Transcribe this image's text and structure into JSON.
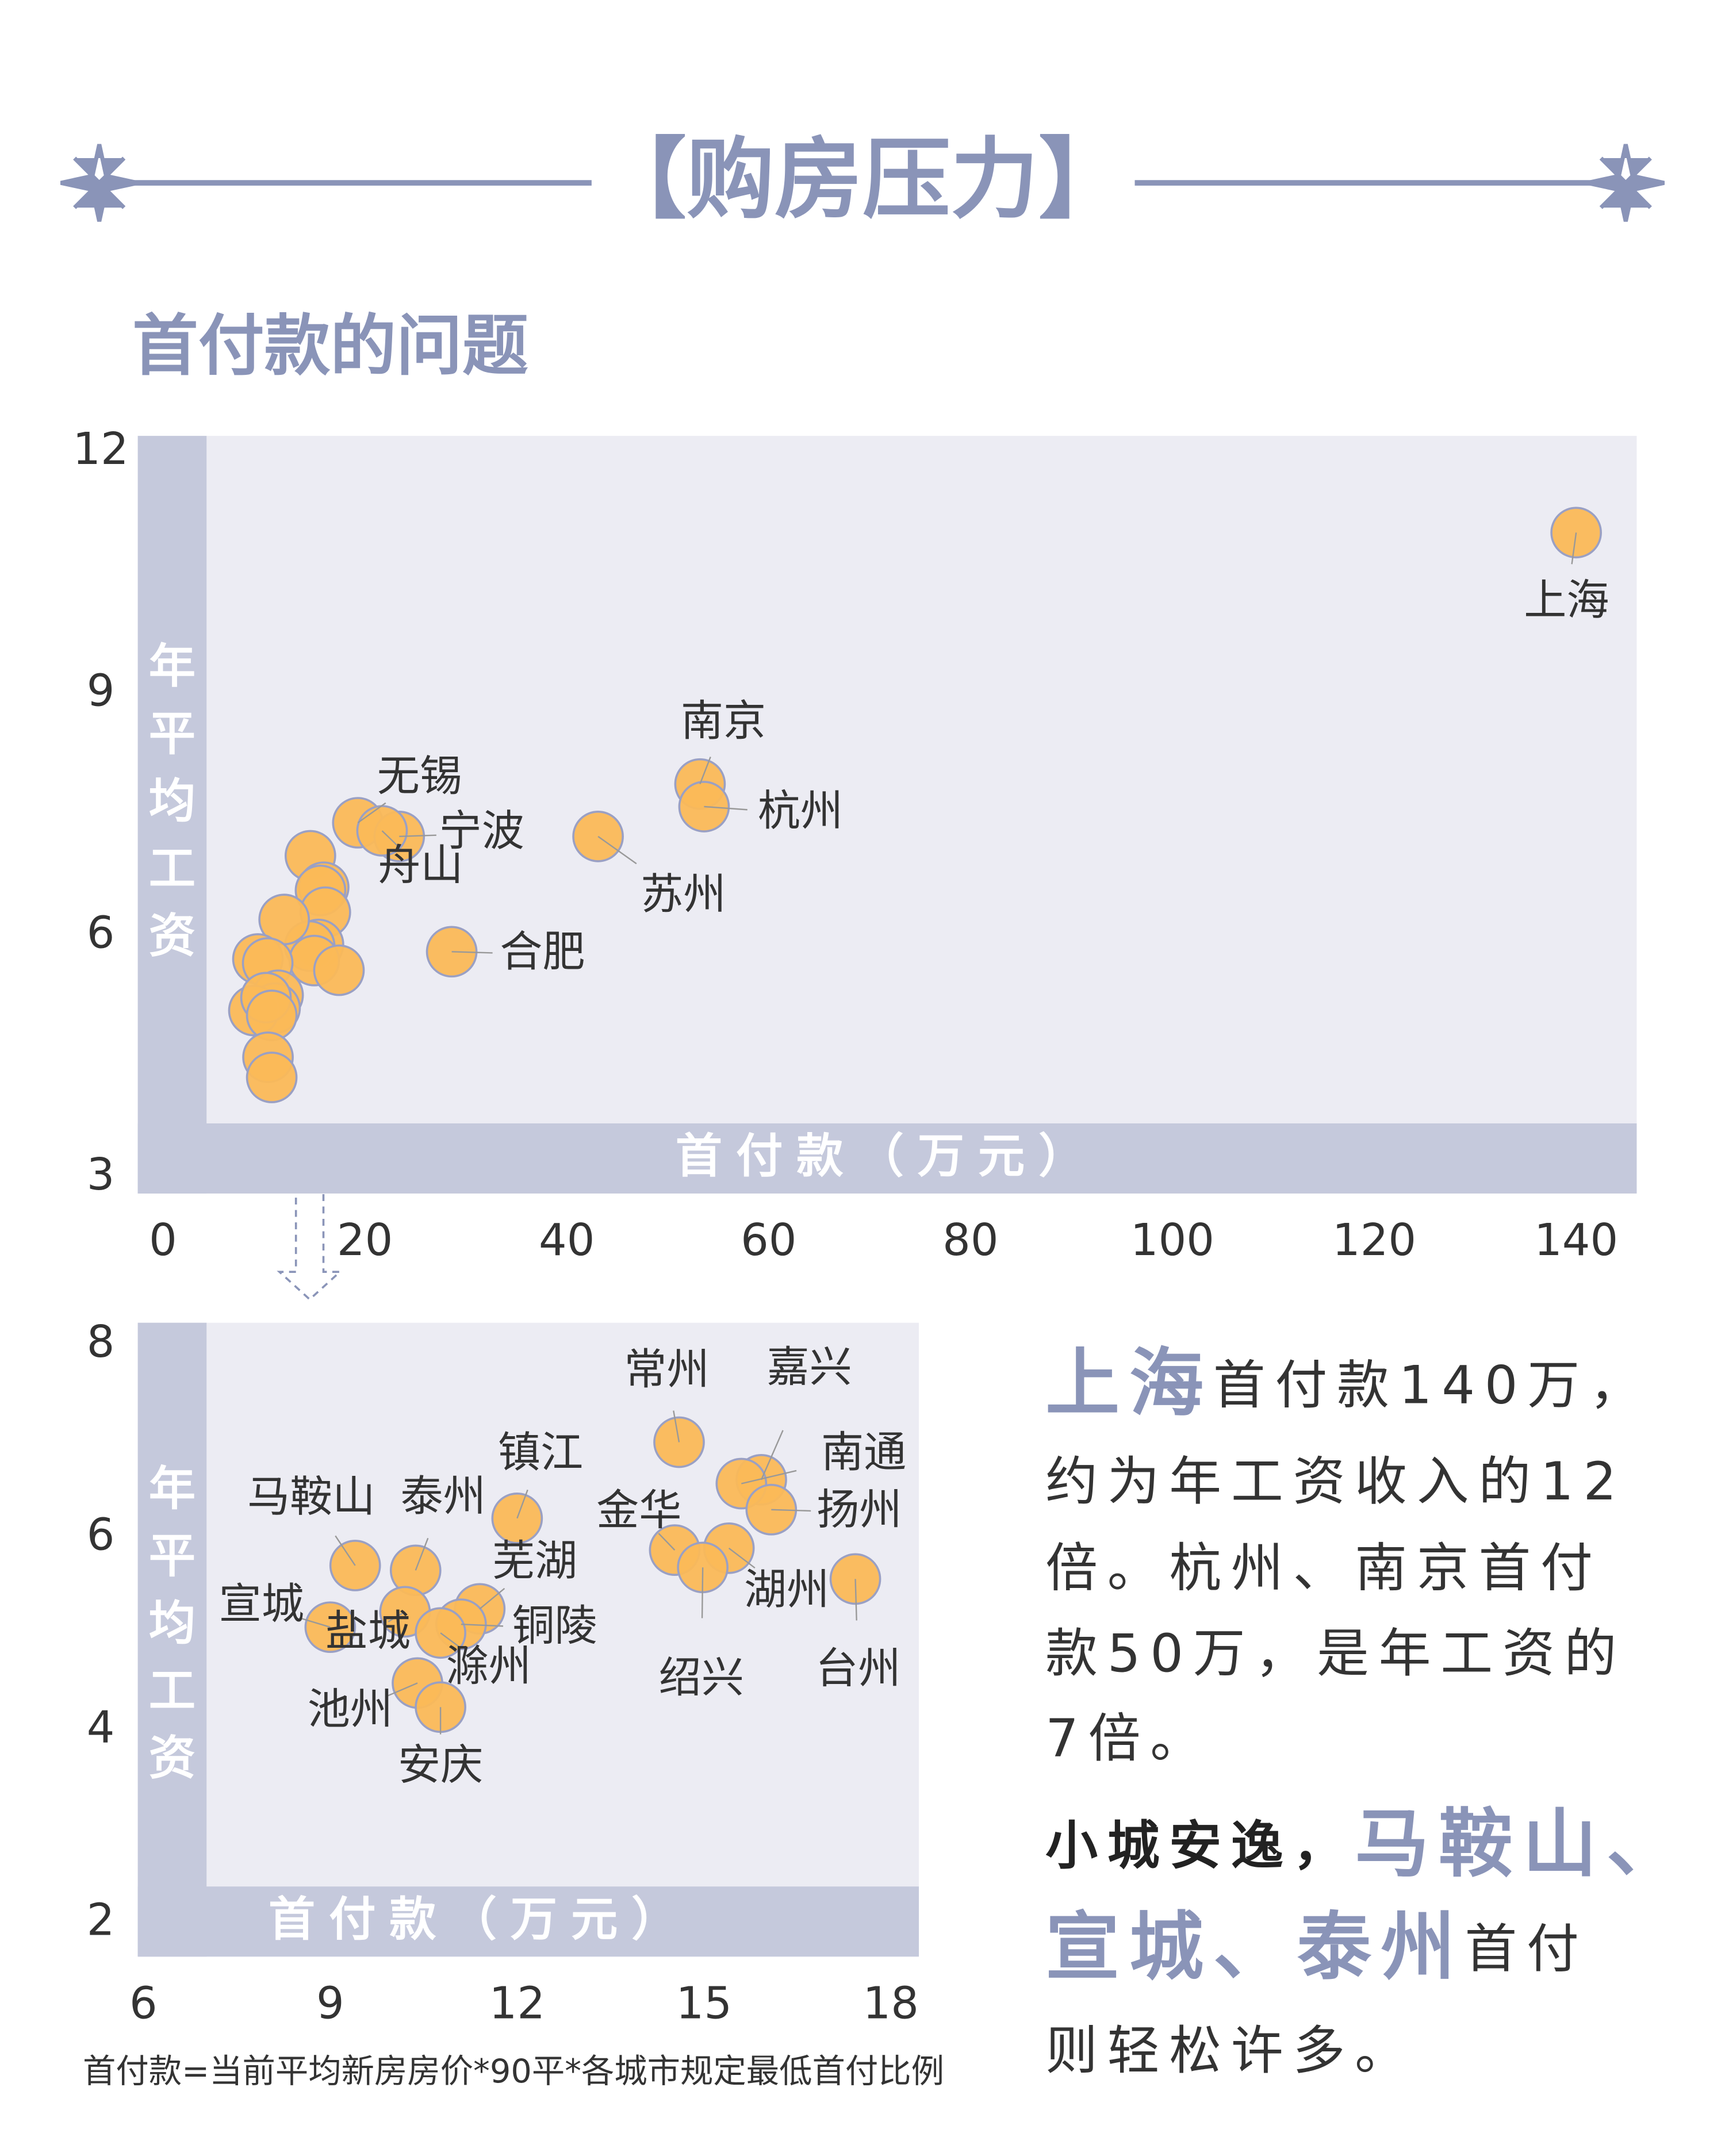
{
  "header": {
    "title": "【购房压力】",
    "subtitle": "首付款的问题"
  },
  "chart_data": [
    {
      "type": "scatter",
      "x_label": "首付款（万元）",
      "y_label": "年平均工资",
      "color": "#fbb957",
      "xlim": [
        -2.5,
        146
      ],
      "ylim": [
        2.8,
        12.2
      ],
      "xticks": [
        0,
        20,
        40,
        60,
        80,
        100,
        120,
        140
      ],
      "yticks": [
        3,
        6,
        9,
        12
      ],
      "labels": [
        "上海",
        "南京",
        "杭州",
        "苏州",
        "无锡",
        "宁波",
        "舟山",
        "合肥",
        null,
        null,
        null,
        null,
        null,
        null,
        null,
        null,
        null,
        null,
        null,
        null,
        null,
        null,
        null,
        null,
        null,
        null
      ],
      "x": [
        140,
        53.2,
        53.6,
        43.1,
        19.3,
        23.4,
        21.7,
        28.6,
        14.6,
        15.92,
        15.6,
        16.08,
        15.4,
        14.53,
        14.98,
        17.43,
        12.0,
        9.4,
        10.37,
        11.4,
        11.1,
        9.0,
        10.2,
        10.77,
        10.4,
        10.77
      ],
      "values": [
        11.0,
        7.88,
        7.6,
        7.23,
        7.4,
        7.23,
        7.3,
        5.8,
        6.99,
        6.6,
        6.56,
        6.29,
        5.89,
        5.87,
        5.69,
        5.57,
        6.2,
        5.71,
        5.66,
        5.26,
        5.1,
        5.07,
        5.23,
        5.01,
        4.49,
        4.24
      ]
    },
    {
      "type": "scatter",
      "x_label": "首付款（万元）",
      "y_label": "年平均工资",
      "color": "#fbb957",
      "xlim": [
        5.91,
        18.45
      ],
      "ylim": [
        1.65,
        8.23
      ],
      "xticks": [
        6,
        9,
        12,
        15,
        18
      ],
      "yticks": [
        2,
        4,
        6,
        8
      ],
      "labels": [
        "常州",
        "嘉兴",
        "南通",
        "扬州",
        "湖州",
        "金华",
        "绍兴",
        "台州",
        "镇江",
        "马鞍山",
        "泰州",
        "芜湖",
        "铜陵",
        "宣城",
        "盐城",
        "滁州",
        "池州",
        "安庆"
      ],
      "x": [
        14.6,
        15.92,
        15.6,
        16.08,
        15.4,
        14.53,
        14.98,
        17.43,
        12.0,
        9.4,
        10.37,
        11.4,
        11.1,
        9.0,
        10.2,
        10.77,
        10.4,
        10.77
      ],
      "values": [
        6.99,
        6.6,
        6.56,
        6.29,
        5.89,
        5.87,
        5.69,
        5.57,
        6.2,
        5.71,
        5.66,
        5.26,
        5.1,
        5.07,
        5.23,
        5.01,
        4.49,
        4.24
      ]
    }
  ],
  "note": "首付款=当前平均新房房价*90平*各城市规定最低首付比例",
  "paragraph": [
    [
      {
        "text": "上海",
        "style": "accent"
      },
      {
        "text": "首付款140万，"
      }
    ],
    [
      {
        "text": "约为年工资收入的12"
      }
    ],
    [
      {
        "text": "倍。杭州、南京首付"
      }
    ],
    [
      {
        "text": "款50万，是年工资的"
      }
    ],
    [
      {
        "text": "7倍。"
      }
    ],
    [
      {
        "text": "小城安逸，",
        "style": "bold"
      },
      {
        "text": "马鞍山、",
        "style": "accent"
      }
    ],
    [
      {
        "text": "宣城、泰州",
        "style": "accent"
      },
      {
        "text": "首付"
      }
    ],
    [
      {
        "text": "则轻松许多。"
      }
    ]
  ]
}
